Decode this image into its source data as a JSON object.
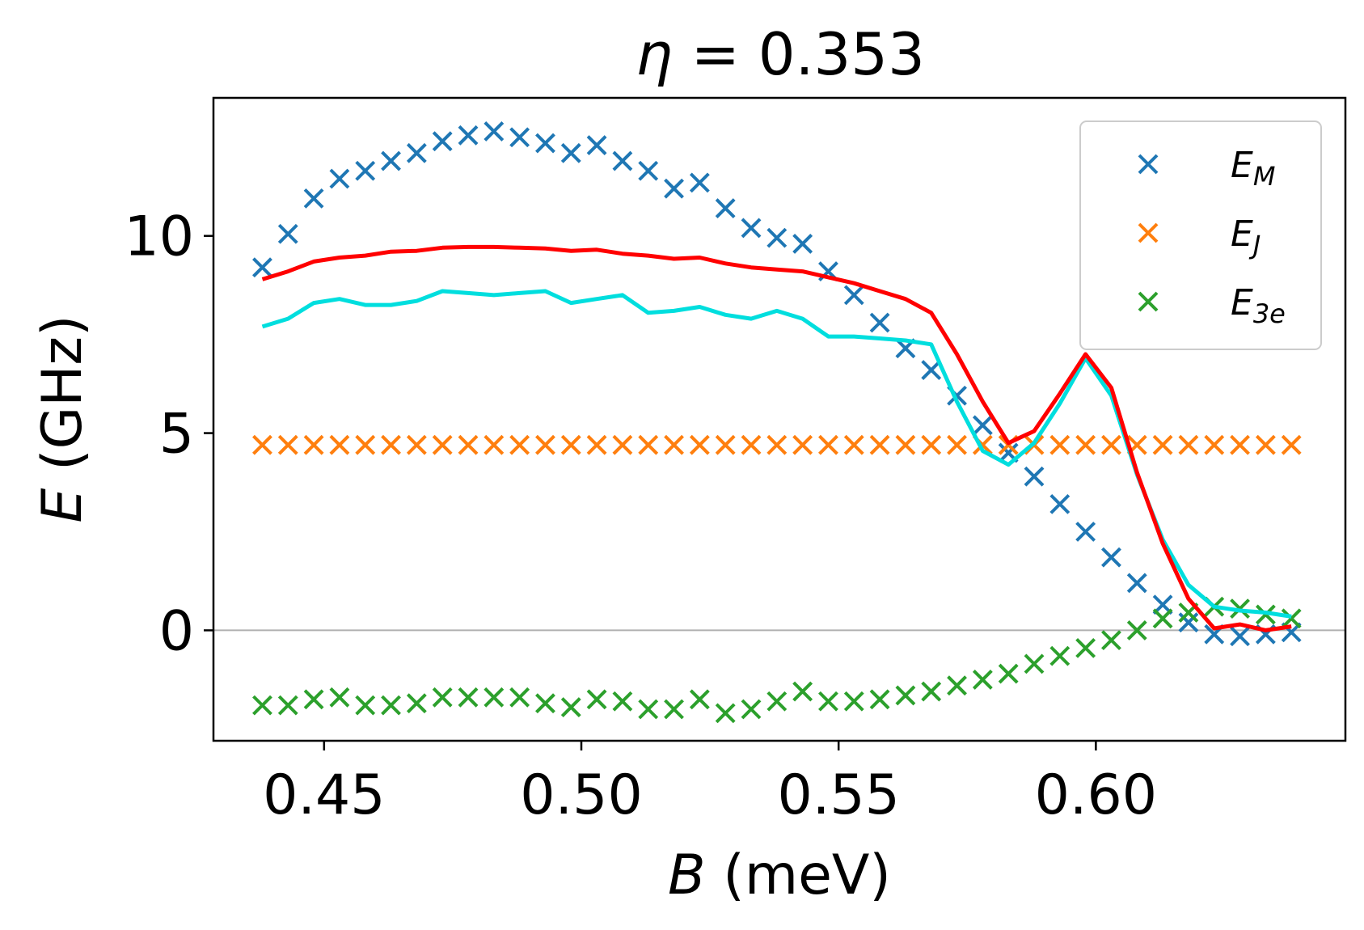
{
  "chart_data": {
    "type": "scatter",
    "title": {
      "symbol": "η",
      "rest": " = 0.353"
    },
    "xlabel": {
      "symbol": "B",
      "rest": " (meV)"
    },
    "ylabel": {
      "symbol": "E",
      "rest": " (GHz)"
    },
    "xlim": [
      0.4285,
      0.6485
    ],
    "ylim": [
      -2.8,
      13.5
    ],
    "xticks": [
      {
        "value": 0.45,
        "label": "0.45"
      },
      {
        "value": 0.5,
        "label": "0.50"
      },
      {
        "value": 0.55,
        "label": "0.55"
      },
      {
        "value": 0.6,
        "label": "0.60"
      }
    ],
    "yticks": [
      {
        "value": 0,
        "label": "0"
      },
      {
        "value": 5,
        "label": "5"
      },
      {
        "value": 10,
        "label": "10"
      }
    ],
    "hline": {
      "y": 0,
      "color": "#b0b0b0"
    },
    "legend_position": "top-right",
    "x": [
      0.438,
      0.443,
      0.448,
      0.453,
      0.458,
      0.463,
      0.468,
      0.473,
      0.478,
      0.483,
      0.488,
      0.493,
      0.498,
      0.503,
      0.508,
      0.513,
      0.518,
      0.523,
      0.528,
      0.533,
      0.538,
      0.543,
      0.548,
      0.553,
      0.558,
      0.563,
      0.568,
      0.573,
      0.578,
      0.583,
      0.588,
      0.593,
      0.598,
      0.603,
      0.608,
      0.613,
      0.618,
      0.623,
      0.628,
      0.633,
      0.638
    ],
    "series": [
      {
        "name": {
          "base": "E",
          "sub": "M"
        },
        "kind": "marker",
        "color": "#1f77b4",
        "values": [
          9.2,
          10.05,
          10.95,
          11.45,
          11.65,
          11.9,
          12.1,
          12.4,
          12.55,
          12.65,
          12.5,
          12.35,
          12.1,
          12.3,
          11.9,
          11.65,
          11.2,
          11.35,
          10.7,
          10.2,
          9.95,
          9.8,
          9.1,
          8.5,
          7.8,
          7.15,
          6.6,
          5.95,
          5.2,
          4.5,
          3.9,
          3.2,
          2.5,
          1.85,
          1.2,
          0.65,
          0.2,
          -0.1,
          -0.15,
          -0.1,
          -0.05
        ]
      },
      {
        "name": {
          "base": "E",
          "sub": "J"
        },
        "kind": "marker",
        "color": "#ff7f0e",
        "values": [
          4.7,
          4.7,
          4.7,
          4.7,
          4.7,
          4.7,
          4.7,
          4.7,
          4.7,
          4.7,
          4.7,
          4.7,
          4.7,
          4.7,
          4.7,
          4.7,
          4.7,
          4.7,
          4.7,
          4.7,
          4.7,
          4.7,
          4.7,
          4.7,
          4.7,
          4.7,
          4.7,
          4.7,
          4.7,
          4.7,
          4.7,
          4.7,
          4.7,
          4.7,
          4.7,
          4.7,
          4.7,
          4.7,
          4.7,
          4.7,
          4.7
        ]
      },
      {
        "name": {
          "base": "E",
          "sub": "3e"
        },
        "kind": "marker",
        "color": "#2ca02c",
        "values": [
          -1.9,
          -1.9,
          -1.75,
          -1.7,
          -1.9,
          -1.9,
          -1.85,
          -1.7,
          -1.7,
          -1.7,
          -1.7,
          -1.85,
          -1.95,
          -1.75,
          -1.8,
          -2.0,
          -2.0,
          -1.75,
          -2.1,
          -2.0,
          -1.8,
          -1.55,
          -1.8,
          -1.8,
          -1.75,
          -1.65,
          -1.55,
          -1.4,
          -1.25,
          -1.1,
          -0.85,
          -0.65,
          -0.45,
          -0.25,
          0.0,
          0.3,
          0.45,
          0.6,
          0.55,
          0.4,
          0.3
        ]
      },
      {
        "kind": "line",
        "color": "#00dede",
        "values": [
          7.7,
          7.9,
          8.3,
          8.4,
          8.25,
          8.25,
          8.35,
          8.6,
          8.55,
          8.5,
          8.55,
          8.6,
          8.3,
          8.4,
          8.5,
          8.05,
          8.1,
          8.2,
          8.0,
          7.9,
          8.1,
          7.9,
          7.45,
          7.45,
          7.4,
          7.35,
          7.25,
          5.8,
          4.55,
          4.2,
          4.75,
          5.75,
          6.9,
          5.95,
          3.95,
          2.3,
          1.15,
          0.6,
          0.5,
          0.45,
          0.35
        ]
      },
      {
        "kind": "line",
        "color": "#ff0000",
        "values": [
          8.9,
          9.1,
          9.35,
          9.45,
          9.5,
          9.6,
          9.62,
          9.7,
          9.72,
          9.72,
          9.7,
          9.68,
          9.62,
          9.65,
          9.55,
          9.5,
          9.42,
          9.45,
          9.3,
          9.2,
          9.15,
          9.1,
          8.95,
          8.8,
          8.6,
          8.4,
          8.05,
          7.0,
          5.8,
          4.75,
          5.05,
          6.0,
          7.0,
          6.15,
          4.0,
          2.2,
          0.8,
          0.05,
          0.15,
          0.0,
          0.1
        ]
      }
    ]
  }
}
